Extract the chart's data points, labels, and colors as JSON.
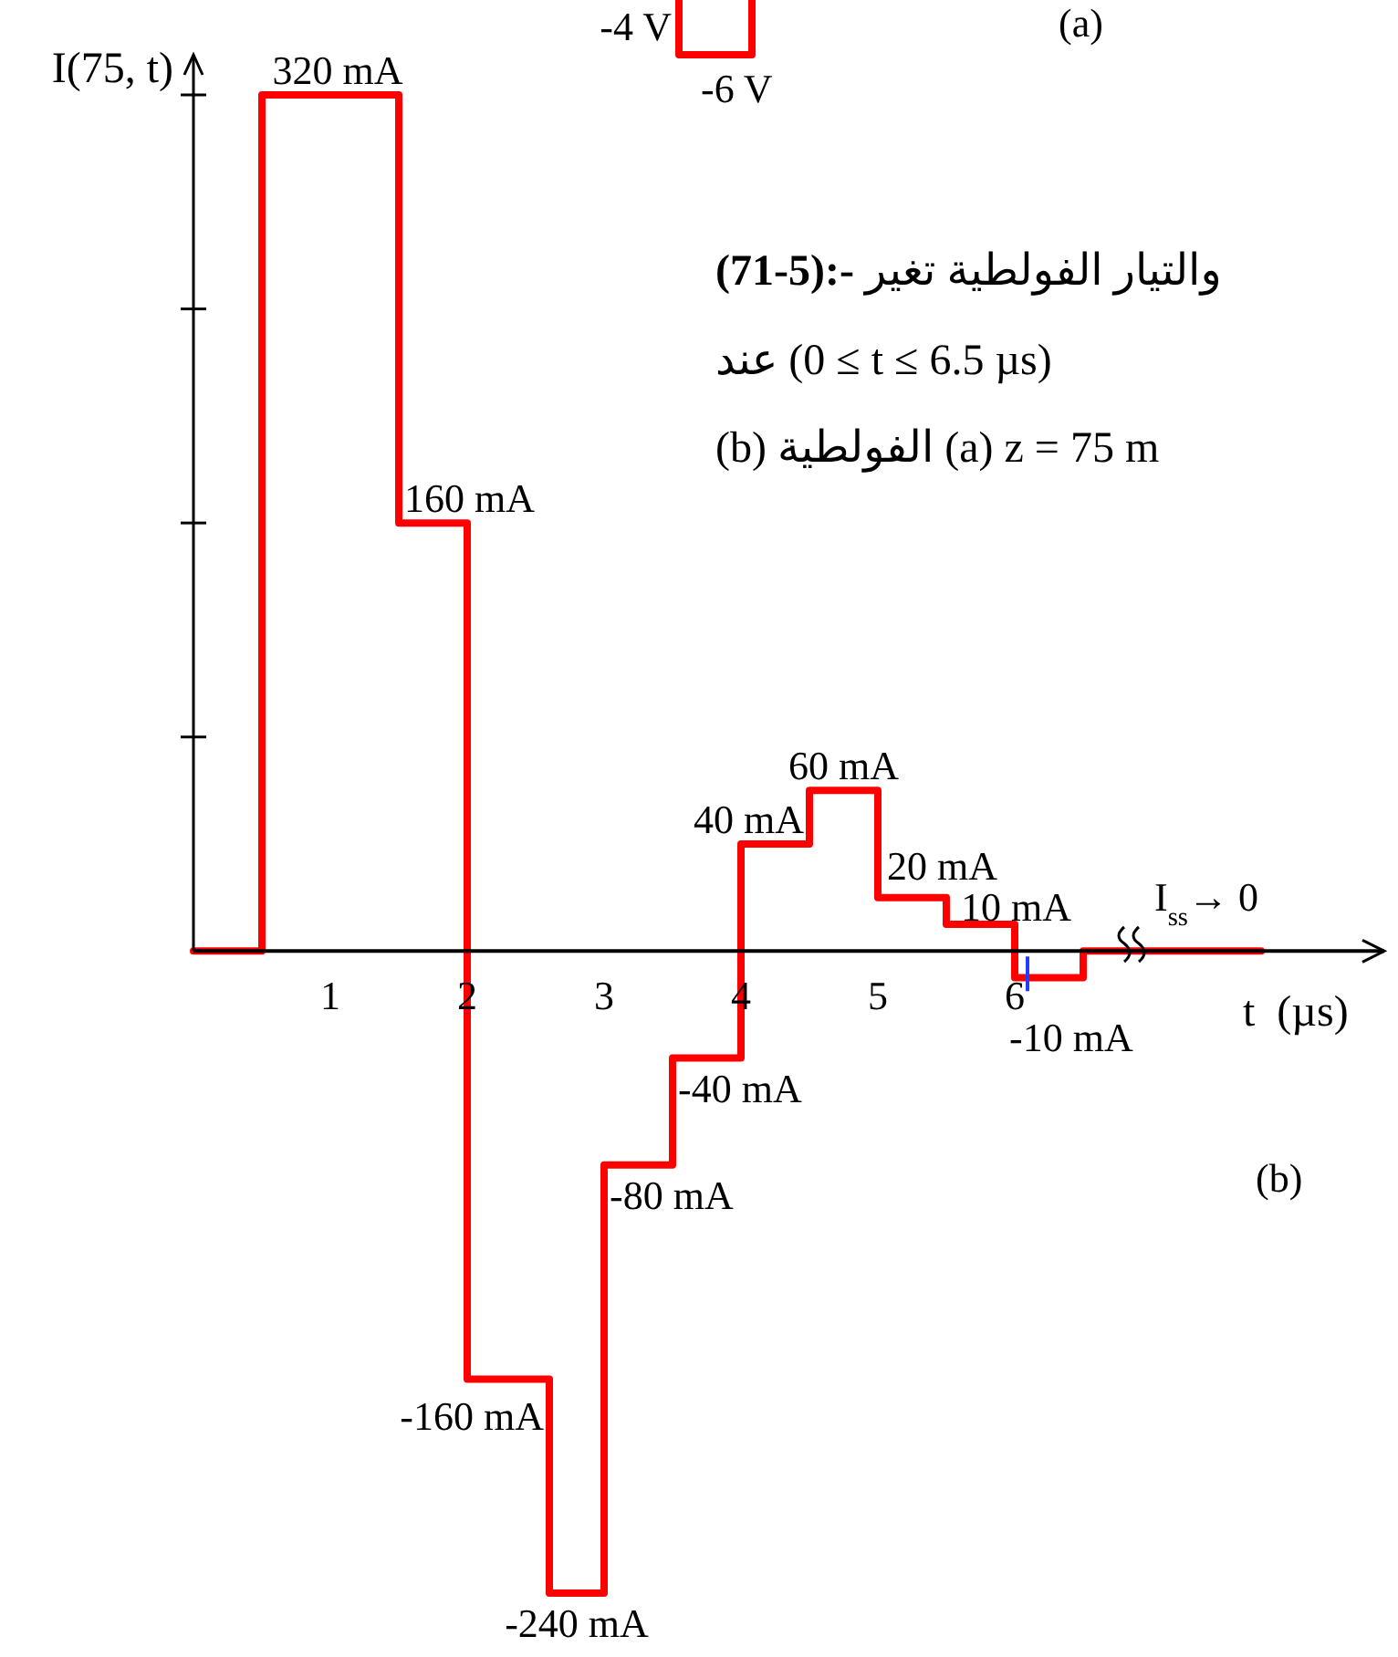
{
  "chart_data": {
    "type": "step",
    "xlabel": "t  (µs)",
    "ylabel": "I(75, t)",
    "x": [
      0,
      0.5,
      1.5,
      2,
      2.6,
      3,
      3.5,
      4,
      4.5,
      5,
      5.5,
      6,
      6.5,
      7.8
    ],
    "values": [
      0,
      320,
      160,
      -160,
      -240,
      -80,
      -40,
      40,
      60,
      20,
      10,
      -10,
      0,
      0
    ],
    "value_labels": [
      null,
      "320 mA",
      "160 mA",
      "-160 mA",
      "-240 mA",
      "-80 mA",
      "-40 mA",
      "40 mA",
      "60 mA",
      "20 mA",
      "10 mA",
      "-10 mA",
      null,
      null
    ],
    "color": "#ff0000",
    "xlim": [
      0,
      8.7
    ],
    "xticks": [
      1,
      2,
      3,
      4,
      5,
      6
    ],
    "yticks": [
      {
        "value": 80,
        "label": null
      },
      {
        "value": 160,
        "label": null
      },
      {
        "value": 240,
        "label": null
      },
      {
        "value": 320,
        "label": null
      }
    ],
    "tick_labels": "x",
    "annotations": [
      "-4 V",
      "-6 V",
      "(a)",
      "(71-5):- تغير الفولطية والتيار",
      "عند (0 ≤ t ≤ 6.5 µs)",
      "(b) الفولطية (a) z = 75 m",
      "(b)",
      {
        "text": "I$_{ss}$→ 0",
        "x": 7.4,
        "y": 0
      }
    ]
  }
}
